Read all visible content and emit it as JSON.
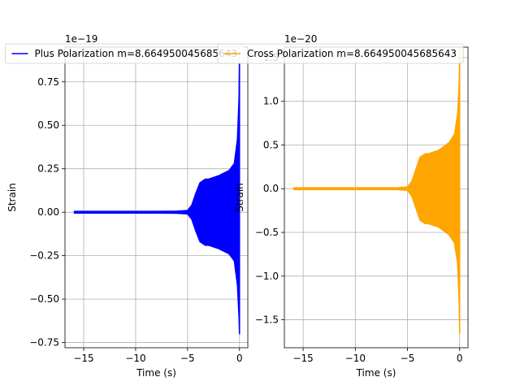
{
  "chart_data": [
    {
      "type": "line",
      "title": "",
      "xlabel": "Time (s)",
      "ylabel": "Strain",
      "y_offset_label": "1e−19",
      "xlim": [
        -16.8,
        0.8
      ],
      "ylim": [
        -0.78,
        0.95
      ],
      "x_ticks": [
        -15,
        -10,
        -5,
        0
      ],
      "x_tick_labels": [
        "−15",
        "−10",
        "−5",
        "0"
      ],
      "y_ticks": [
        -0.75,
        -0.5,
        -0.25,
        0.0,
        0.25,
        0.5,
        0.75
      ],
      "y_tick_labels": [
        "−0.75",
        "−0.50",
        "−0.25",
        "0.00",
        "0.25",
        "0.50",
        "0.75"
      ],
      "grid": true,
      "legend_position": "upper-right",
      "series": [
        {
          "name": "Plus Polarization m=8.664950045685643",
          "color": "#0000ff",
          "envelope": {
            "x": [
              -15.9,
              -8.0,
              -6.0,
              -5.0,
              -4.6,
              -4.2,
              -3.8,
              -3.3,
              -3.0,
              -2.0,
              -1.0,
              -0.5,
              -0.2,
              -0.05,
              0.0
            ],
            "upper": [
              0.005,
              0.005,
              0.006,
              0.01,
              0.04,
              0.11,
              0.17,
              0.19,
              0.19,
              0.21,
              0.24,
              0.28,
              0.42,
              0.65,
              0.92
            ],
            "lower": [
              -0.005,
              -0.005,
              -0.006,
              -0.01,
              -0.04,
              -0.11,
              -0.17,
              -0.19,
              -0.19,
              -0.21,
              -0.24,
              -0.28,
              -0.42,
              -0.6,
              -0.7
            ]
          }
        }
      ]
    },
    {
      "type": "line",
      "title": "",
      "xlabel": "Time (s)",
      "ylabel": "Strain",
      "y_offset_label": "1e−20",
      "xlim": [
        -16.8,
        0.8
      ],
      "ylim": [
        -1.82,
        1.62
      ],
      "x_ticks": [
        -15,
        -10,
        -5,
        0
      ],
      "x_tick_labels": [
        "−15",
        "−10",
        "−5",
        "0"
      ],
      "y_ticks": [
        -1.5,
        -1.0,
        -0.5,
        0.0,
        0.5,
        1.0,
        1.5
      ],
      "y_tick_labels": [
        "−1.5",
        "−1.0",
        "−0.5",
        "0.0",
        "0.5",
        "1.0",
        "1.5"
      ],
      "grid": true,
      "legend_position": "upper-right",
      "series": [
        {
          "name": "Cross Polarization m=8.664950045685643",
          "color": "#ffa500",
          "envelope": {
            "x": [
              -15.9,
              -8.0,
              -6.0,
              -5.0,
              -4.6,
              -4.2,
              -3.8,
              -3.3,
              -3.0,
              -2.0,
              -1.0,
              -0.5,
              -0.2,
              -0.05,
              0.0
            ],
            "upper": [
              0.01,
              0.01,
              0.01,
              0.02,
              0.08,
              0.22,
              0.36,
              0.4,
              0.4,
              0.44,
              0.53,
              0.62,
              0.85,
              1.2,
              1.55
            ],
            "lower": [
              -0.01,
              -0.01,
              -0.01,
              -0.02,
              -0.08,
              -0.22,
              -0.36,
              -0.4,
              -0.4,
              -0.44,
              -0.53,
              -0.62,
              -0.85,
              -1.3,
              -1.65
            ]
          }
        }
      ]
    }
  ]
}
